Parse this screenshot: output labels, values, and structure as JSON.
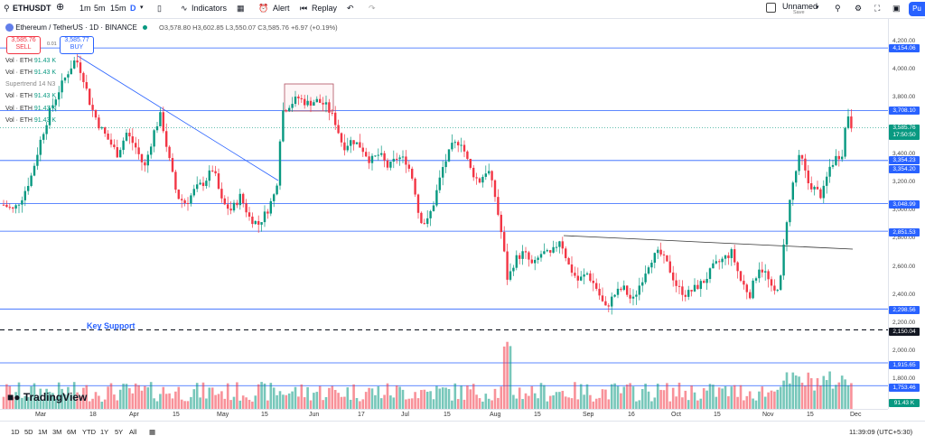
{
  "topbar": {
    "symbol": "ETHUSDT",
    "intervals": [
      "1m",
      "5m",
      "15m",
      "D"
    ],
    "indicators_label": "Indicators",
    "alert_label": "Alert",
    "replay_label": "Replay",
    "layout_name": "Unnamed",
    "layout_status": "Save",
    "publish_label": "Pu"
  },
  "legend": {
    "title": "Ethereum / TetherUS · 1D · BINANCE",
    "ohlc": "O3,578.80  H3,602.85  L3,550.07  C3,585.76  +6.97 (+0.19%)",
    "sell_price": "3,585.76",
    "sell_label": "SELL",
    "spread": "0.01",
    "buy_price": "3,585.77",
    "buy_label": "BUY"
  },
  "indicators": [
    {
      "name": "Vol · ETH",
      "value": "91.43 K"
    },
    {
      "name": "Vol · ETH",
      "value": "91.43 K"
    },
    {
      "name": "Supertrend 14 N3",
      "value": ""
    },
    {
      "name": "Vol · ETH",
      "value": "91.43 K"
    },
    {
      "name": "Vol · ETH",
      "value": "91.43 K"
    },
    {
      "name": "Vol · ETH",
      "value": "91.43 K"
    }
  ],
  "annotations": {
    "key_support": "Key Support"
  },
  "watermark": "TradingView",
  "price_scale": {
    "ticks": [
      "4,200.00",
      "4,000.00",
      "3,800.00",
      "3,400.00",
      "3,200.00",
      "3,000.00",
      "2,800.00",
      "2,600.00",
      "2,400.00",
      "2,200.00",
      "2,000.00",
      "1,800.00"
    ],
    "levels": [
      "4,154.06",
      "3,708.10",
      "3,354.23",
      "3,354.20",
      "3,048.99",
      "2,851.53",
      "2,298.56",
      "2,150.04",
      "1,915.65",
      "1,753.46"
    ],
    "current_price": "3,585.76",
    "countdown": "17:50:50",
    "volume_label": "91.43 K"
  },
  "time_axis": [
    "Mar",
    "18",
    "Apr",
    "15",
    "May",
    "15",
    "Jun",
    "17",
    "Jul",
    "15",
    "Aug",
    "15",
    "Sep",
    "16",
    "Oct",
    "15",
    "Nov",
    "15",
    "Dec"
  ],
  "bottombar": {
    "ranges": [
      "1D",
      "5D",
      "1M",
      "3M",
      "6M",
      "YTD",
      "1Y",
      "5Y",
      "All"
    ],
    "clock": "11:39:09 (UTC+5:30)"
  },
  "colors": {
    "up": "#089981",
    "down": "#f23645",
    "level_line": "#2962ff",
    "accent": "#2962ff"
  }
}
